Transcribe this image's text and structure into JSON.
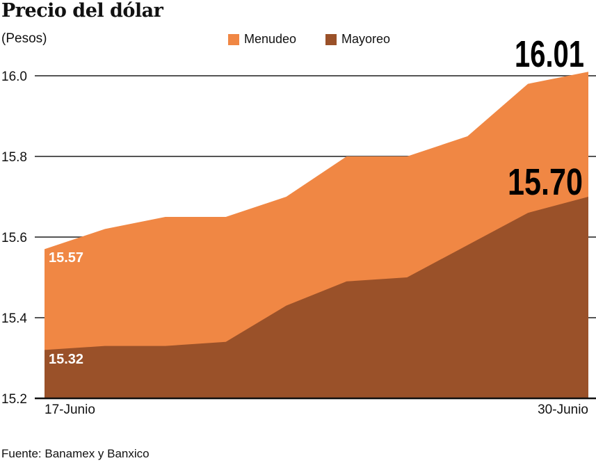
{
  "chart_data": {
    "type": "area",
    "title": "Precio del dólar",
    "ylabel": "(Pesos)",
    "source": "Fuente: Banamex y Banxico",
    "x_labels": [
      "17-Junio",
      "30-Junio"
    ],
    "ylim": [
      15.2,
      16.0
    ],
    "yticks": [
      "15.2",
      "15.4",
      "15.6",
      "15.8",
      "16.0"
    ],
    "grid": true,
    "legend_placement": "top-center",
    "series": [
      {
        "name": "Menudeo",
        "color": "#F08744",
        "values": [
          15.57,
          15.62,
          15.65,
          15.65,
          15.7,
          15.8,
          15.8,
          15.85,
          15.98,
          16.01
        ],
        "labels": {
          "first": "15.57",
          "last": "16.01"
        }
      },
      {
        "name": "Mayoreo",
        "color": "#9A5129",
        "values": [
          15.32,
          15.33,
          15.33,
          15.34,
          15.43,
          15.49,
          15.5,
          15.58,
          15.66,
          15.7
        ],
        "labels": {
          "first": "15.32",
          "last": "15.70"
        }
      }
    ]
  }
}
